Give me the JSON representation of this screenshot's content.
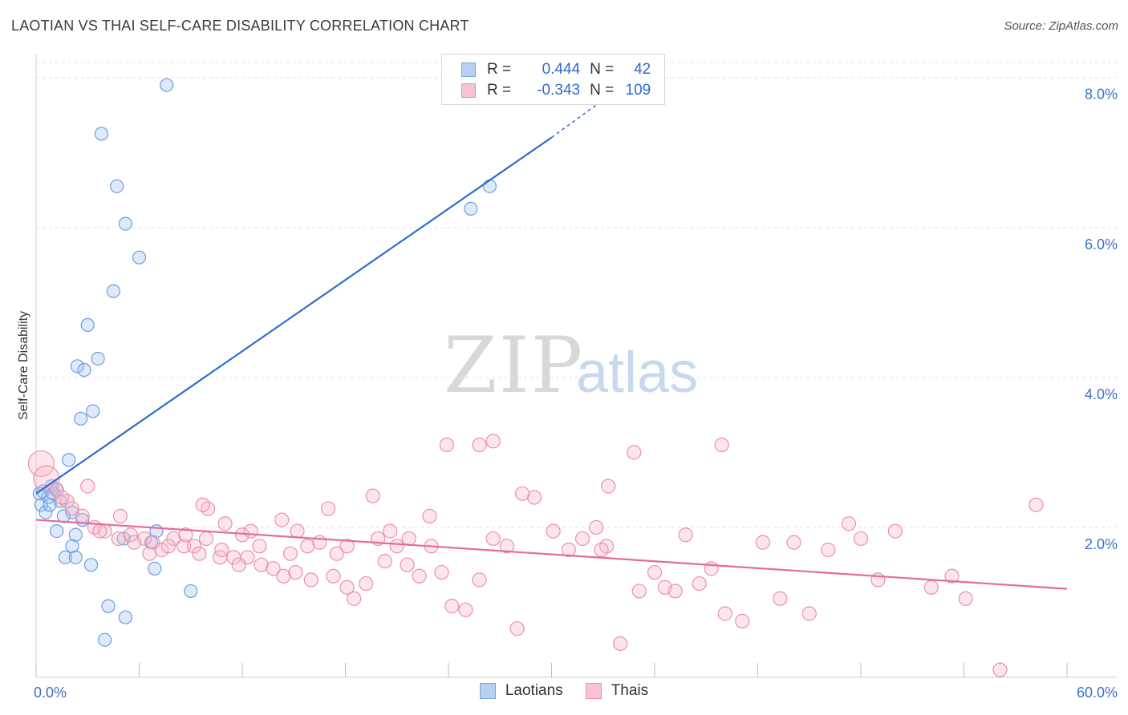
{
  "header": {
    "title": "LAOTIAN VS THAI SELF-CARE DISABILITY CORRELATION CHART",
    "source": "Source: ZipAtlas.com"
  },
  "watermark": {
    "zip": "ZIP",
    "atlas": "atlas"
  },
  "legend": {
    "rows": [
      {
        "r_label": "R =",
        "r_value": "0.444",
        "n_label": "N =",
        "n_value": "42",
        "fill": "#b7d0f2",
        "stroke": "#7aa5e0"
      },
      {
        "r_label": "R =",
        "r_value": "-0.343",
        "n_label": "N =",
        "n_value": "109",
        "fill": "#f7c3d2",
        "stroke": "#ec8fab"
      }
    ]
  },
  "bottom_legend": [
    {
      "label": "Laotians",
      "fill": "#b7d0f2",
      "stroke": "#7aa5e0"
    },
    {
      "label": "Thais",
      "fill": "#f7c3d2",
      "stroke": "#ec8fab"
    }
  ],
  "colors": {
    "laotian_fill": "rgba(160,196,240,0.35)",
    "laotian_stroke": "#6d9de0",
    "laotian_line": "#2b6fce",
    "thai_fill": "rgba(246,182,200,0.35)",
    "thai_stroke": "#ec8fab",
    "thai_line": "#e46c94",
    "axis_text": "#3c72c8",
    "grid": "#e2e2e2"
  },
  "chart_data": {
    "type": "scatter",
    "title": "LAOTIAN VS THAI SELF-CARE DISABILITY CORRELATION CHART",
    "xlabel": "",
    "ylabel": "Self-Care Disability",
    "xlim": [
      0,
      60
    ],
    "ylim": [
      0,
      8.2
    ],
    "x_tick_labels": [
      {
        "value": 0,
        "label": "0.0%"
      },
      {
        "value": 60,
        "label": "60.0%"
      }
    ],
    "x_minor_ticks": [
      0,
      6,
      12,
      18,
      24,
      30,
      36,
      42,
      48,
      54,
      60
    ],
    "y_tick_labels": [
      {
        "value": 2,
        "label": "2.0%"
      },
      {
        "value": 4,
        "label": "4.0%"
      },
      {
        "value": 6,
        "label": "6.0%"
      },
      {
        "value": 8,
        "label": "8.0%"
      }
    ],
    "grid": true,
    "legend_position": "top-center",
    "series": [
      {
        "name": "Laotians",
        "r": 0.444,
        "n": 42,
        "trend": {
          "x0": 0,
          "y0": 2.45,
          "x1": 30,
          "y1": 7.2,
          "dash_to_x": 33,
          "dash_to_y": 7.7
        },
        "points": [
          [
            7.6,
            7.9
          ],
          [
            3.8,
            7.25
          ],
          [
            4.7,
            6.55
          ],
          [
            5.2,
            6.05
          ],
          [
            6.0,
            5.6
          ],
          [
            4.5,
            5.15
          ],
          [
            3.0,
            4.7
          ],
          [
            3.6,
            4.25
          ],
          [
            2.4,
            4.15
          ],
          [
            2.8,
            4.1
          ],
          [
            3.3,
            3.55
          ],
          [
            2.6,
            3.45
          ],
          [
            1.9,
            2.9
          ],
          [
            0.9,
            2.55
          ],
          [
            1.2,
            2.5
          ],
          [
            0.4,
            2.48
          ],
          [
            0.7,
            2.4
          ],
          [
            1.4,
            2.35
          ],
          [
            0.3,
            2.3
          ],
          [
            0.55,
            2.2
          ],
          [
            2.1,
            2.2
          ],
          [
            1.6,
            2.15
          ],
          [
            2.7,
            2.1
          ],
          [
            7.0,
            1.95
          ],
          [
            1.2,
            1.95
          ],
          [
            2.3,
            1.9
          ],
          [
            5.1,
            1.85
          ],
          [
            6.7,
            1.8
          ],
          [
            2.1,
            1.75
          ],
          [
            1.7,
            1.6
          ],
          [
            2.3,
            1.6
          ],
          [
            3.2,
            1.5
          ],
          [
            6.9,
            1.45
          ],
          [
            9.0,
            1.15
          ],
          [
            4.2,
            0.95
          ],
          [
            5.2,
            0.8
          ],
          [
            4.0,
            0.5
          ],
          [
            25.3,
            6.25
          ],
          [
            26.4,
            6.55
          ],
          [
            0.2,
            2.45
          ],
          [
            1.0,
            2.45
          ],
          [
            0.8,
            2.3
          ]
        ]
      },
      {
        "name": "Thais",
        "r": -0.343,
        "n": 109,
        "trend": {
          "x0": 0,
          "y0": 2.1,
          "x1": 60,
          "y1": 1.18
        },
        "points": [
          [
            0.3,
            2.85
          ],
          [
            0.6,
            2.65
          ],
          [
            3.0,
            2.55
          ],
          [
            1.2,
            2.5
          ],
          [
            1.8,
            2.35
          ],
          [
            2.1,
            2.25
          ],
          [
            3.4,
            2.0
          ],
          [
            4.0,
            1.95
          ],
          [
            4.8,
            1.85
          ],
          [
            5.5,
            1.9
          ],
          [
            6.3,
            1.85
          ],
          [
            6.8,
            1.8
          ],
          [
            7.3,
            1.7
          ],
          [
            8.0,
            1.85
          ],
          [
            8.6,
            1.75
          ],
          [
            9.2,
            1.75
          ],
          [
            9.9,
            1.85
          ],
          [
            10.7,
            1.6
          ],
          [
            11.5,
            1.6
          ],
          [
            12.3,
            1.6
          ],
          [
            13.1,
            1.5
          ],
          [
            13.8,
            1.45
          ],
          [
            14.4,
            1.35
          ],
          [
            15.1,
            1.4
          ],
          [
            15.8,
            1.75
          ],
          [
            16.5,
            1.8
          ],
          [
            17.3,
            1.35
          ],
          [
            18.1,
            1.2
          ],
          [
            18.5,
            1.05
          ],
          [
            19.2,
            1.25
          ],
          [
            20.3,
            1.55
          ],
          [
            21.0,
            1.75
          ],
          [
            21.6,
            1.5
          ],
          [
            22.3,
            1.35
          ],
          [
            23.0,
            1.75
          ],
          [
            23.6,
            1.4
          ],
          [
            24.2,
            0.95
          ],
          [
            25.0,
            0.9
          ],
          [
            25.8,
            1.3
          ],
          [
            26.6,
            1.85
          ],
          [
            27.4,
            1.75
          ],
          [
            28.0,
            0.65
          ],
          [
            29.0,
            2.4
          ],
          [
            30.1,
            1.95
          ],
          [
            31.0,
            1.7
          ],
          [
            31.8,
            1.85
          ],
          [
            32.6,
            2.0
          ],
          [
            33.2,
            1.75
          ],
          [
            34.0,
            0.45
          ],
          [
            35.1,
            1.15
          ],
          [
            36.0,
            1.4
          ],
          [
            36.6,
            1.2
          ],
          [
            37.2,
            1.15
          ],
          [
            37.8,
            1.9
          ],
          [
            38.6,
            1.25
          ],
          [
            39.3,
            1.45
          ],
          [
            40.1,
            0.85
          ],
          [
            41.1,
            0.75
          ],
          [
            42.3,
            1.8
          ],
          [
            43.3,
            1.05
          ],
          [
            44.1,
            1.8
          ],
          [
            45.0,
            0.85
          ],
          [
            46.1,
            1.7
          ],
          [
            47.3,
            2.05
          ],
          [
            48.0,
            1.85
          ],
          [
            49.0,
            1.3
          ],
          [
            50.0,
            1.95
          ],
          [
            52.1,
            1.2
          ],
          [
            53.3,
            1.35
          ],
          [
            54.1,
            1.05
          ],
          [
            56.1,
            0.1
          ],
          [
            58.2,
            2.3
          ],
          [
            23.9,
            3.1
          ],
          [
            25.8,
            3.1
          ],
          [
            26.6,
            3.15
          ],
          [
            34.8,
            3.0
          ],
          [
            39.9,
            3.1
          ],
          [
            33.3,
            2.55
          ],
          [
            28.3,
            2.45
          ],
          [
            32.9,
            1.7
          ],
          [
            19.6,
            2.42
          ],
          [
            17.0,
            2.25
          ],
          [
            15.2,
            1.95
          ],
          [
            14.3,
            2.1
          ],
          [
            13.0,
            1.75
          ],
          [
            12.0,
            1.9
          ],
          [
            11.0,
            2.05
          ],
          [
            10.0,
            2.25
          ],
          [
            9.5,
            1.65
          ],
          [
            8.7,
            1.9
          ],
          [
            7.7,
            1.75
          ],
          [
            6.6,
            1.65
          ],
          [
            5.7,
            1.8
          ],
          [
            4.9,
            2.15
          ],
          [
            3.7,
            1.95
          ],
          [
            2.7,
            2.15
          ],
          [
            1.5,
            2.4
          ],
          [
            22.9,
            2.15
          ],
          [
            21.7,
            1.85
          ],
          [
            20.6,
            1.95
          ],
          [
            19.9,
            1.85
          ],
          [
            18.1,
            1.75
          ],
          [
            17.5,
            1.65
          ],
          [
            16.0,
            1.3
          ],
          [
            14.8,
            1.65
          ],
          [
            12.5,
            1.95
          ],
          [
            11.8,
            1.5
          ],
          [
            10.8,
            1.7
          ],
          [
            9.7,
            2.3
          ]
        ]
      }
    ]
  }
}
